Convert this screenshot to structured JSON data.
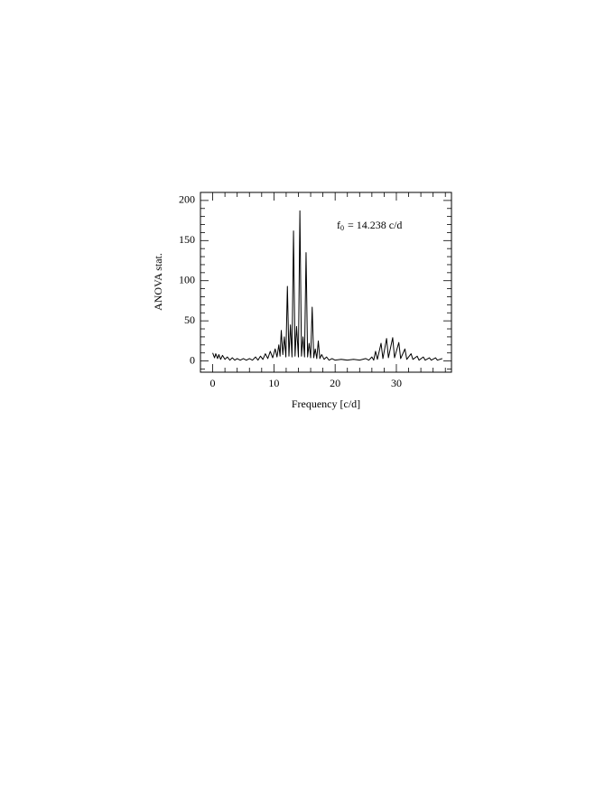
{
  "chart_data": {
    "type": "line",
    "x_label": "Frequency [c/d]",
    "y_label": "ANOVA stat.",
    "annotation": {
      "symbol": "f",
      "subscript": "0",
      "text": "= 14.238 c/d"
    },
    "color": "#000000",
    "xlim": [
      -2,
      39
    ],
    "xticks": [
      0,
      10,
      20,
      30
    ],
    "xminorticks": [
      -2,
      2,
      4,
      6,
      8,
      12,
      14,
      16,
      18,
      22,
      24,
      26,
      28,
      32,
      34,
      36,
      38
    ],
    "ylim": [
      -14,
      210
    ],
    "yticks": [
      0,
      50,
      100,
      150,
      200
    ],
    "yminorticks": [
      -10,
      10,
      20,
      30,
      40,
      60,
      70,
      80,
      90,
      110,
      120,
      130,
      140,
      160,
      170,
      180,
      190
    ],
    "x": [
      0,
      0.3,
      0.5,
      0.8,
      1.0,
      1.3,
      1.6,
      2.0,
      2.4,
      2.8,
      3.2,
      3.6,
      4.0,
      4.5,
      5.0,
      5.5,
      6.0,
      6.5,
      7.0,
      7.4,
      7.8,
      8.2,
      8.6,
      9.0,
      9.4,
      9.8,
      10.2,
      10.5,
      10.8,
      11.0,
      11.2,
      11.45,
      11.7,
      11.95,
      12.2,
      12.45,
      12.7,
      12.95,
      13.2,
      13.45,
      13.7,
      14.0,
      14.24,
      14.5,
      14.75,
      15.0,
      15.25,
      15.5,
      15.75,
      16.0,
      16.25,
      16.5,
      16.75,
      17.0,
      17.25,
      17.5,
      17.8,
      18.2,
      18.6,
      19.0,
      19.5,
      20,
      21,
      22,
      23,
      24,
      25,
      25.5,
      26,
      26.3,
      26.6,
      26.9,
      27.5,
      27.8,
      28.4,
      28.7,
      29.4,
      29.7,
      30.4,
      30.7,
      31.4,
      31.7,
      32.4,
      32.7,
      33.4,
      33.7,
      34.4,
      34.7,
      35.4,
      35.7,
      36.4,
      36.7,
      37.5
    ],
    "values": [
      10,
      4,
      9,
      3,
      8,
      2,
      7,
      2,
      5,
      1,
      4,
      1,
      3,
      1,
      3,
      1,
      3,
      1,
      5,
      1,
      6,
      2,
      9,
      3,
      12,
      4,
      15,
      5,
      20,
      6,
      38,
      8,
      30,
      5,
      93,
      6,
      45,
      5,
      162,
      6,
      43,
      5,
      187,
      6,
      30,
      5,
      135,
      5,
      22,
      4,
      67,
      4,
      15,
      3,
      25,
      3,
      8,
      2,
      5,
      1,
      3,
      1,
      2,
      1,
      2,
      1,
      3,
      1,
      5,
      1,
      12,
      2,
      22,
      3,
      28,
      4,
      29,
      4,
      23,
      3,
      15,
      2,
      9,
      2,
      6,
      1,
      5,
      1,
      4,
      1,
      4,
      1,
      3
    ]
  }
}
